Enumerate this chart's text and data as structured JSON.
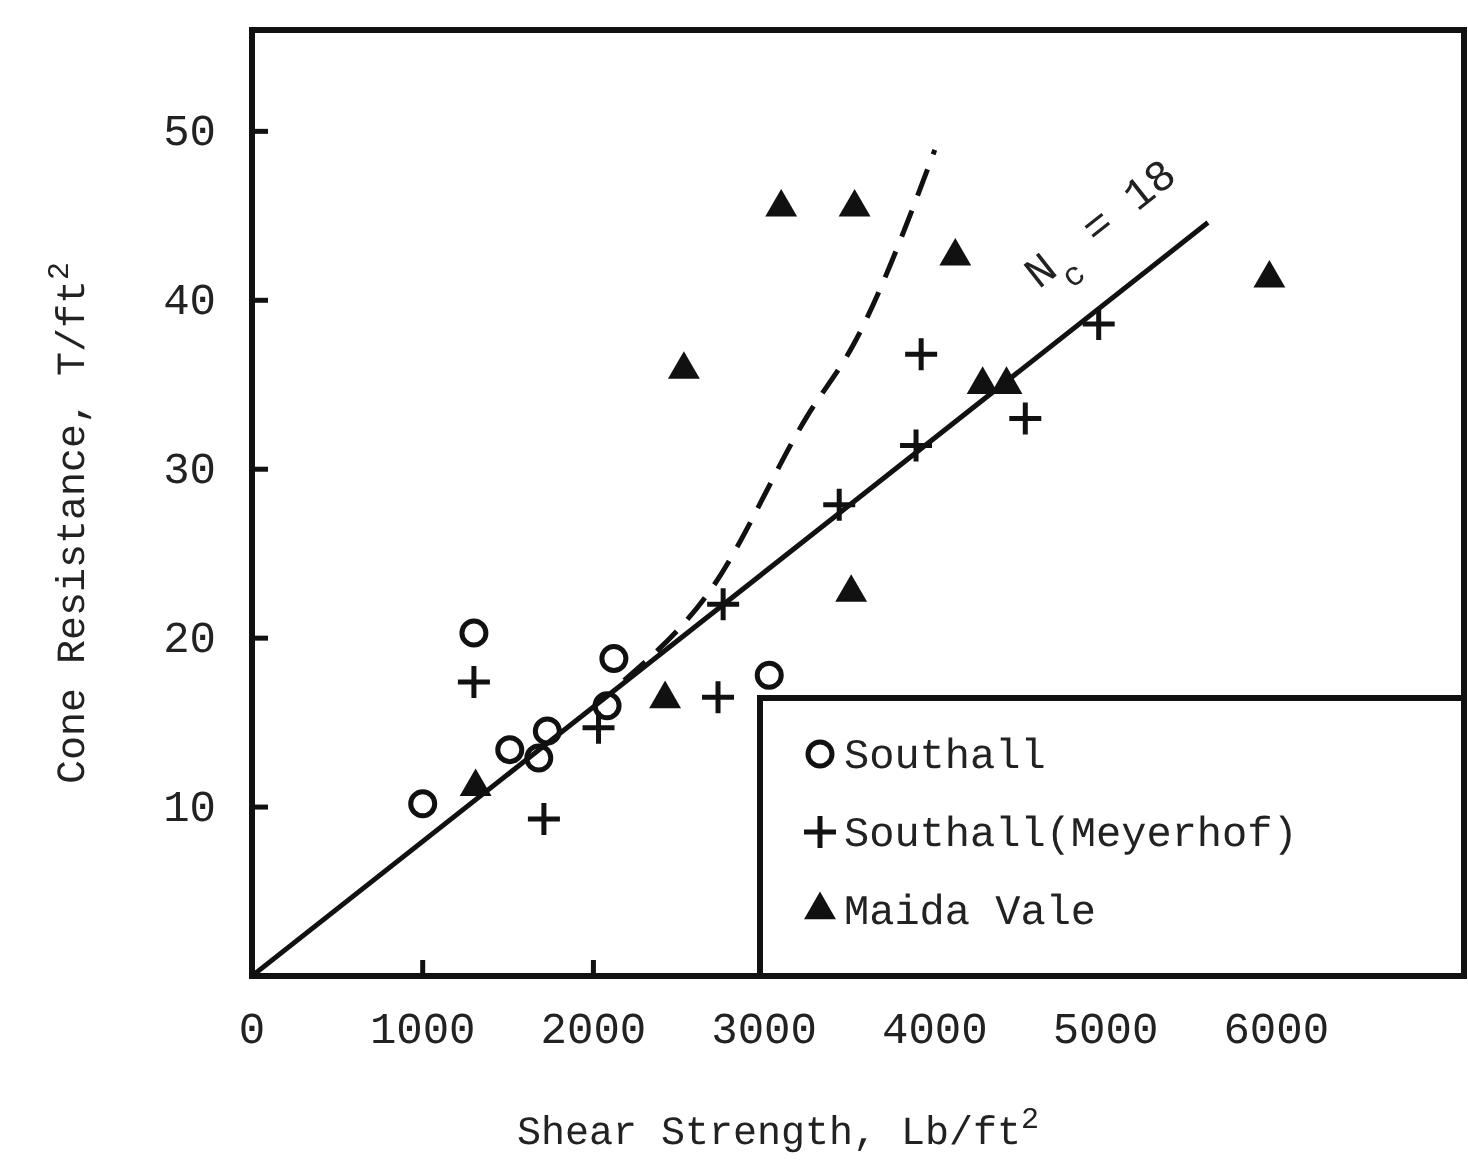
{
  "chart_data": {
    "type": "scatter",
    "xlabel": "Shear Strength, Lb/ft$^{2}$",
    "ylabel": "Cone Resistance, T/ft$^{2}$",
    "xlim": [
      0,
      7100
    ],
    "ylim": [
      0,
      56
    ],
    "xticks": [
      0,
      1000,
      2000,
      3000,
      4000,
      5000,
      6000
    ],
    "yticks": [
      10,
      20,
      30,
      40,
      50
    ],
    "grid": false,
    "legend": "bottom right",
    "series": [
      {
        "name": "Southall",
        "marker": "circle",
        "color": "#111111",
        "x": [
          1000,
          1300,
          1510,
          1680,
          1730,
          2080,
          2120,
          3030
        ],
        "values": [
          10.2,
          20.3,
          13.4,
          12.9,
          14.5,
          16.0,
          18.8,
          17.8
        ]
      },
      {
        "name": "Southall(Meyerhof)",
        "marker": "cross",
        "color": "#111111",
        "x": [
          1300,
          1710,
          2030,
          2730,
          2760,
          3440,
          3890,
          3920,
          4530,
          4960
        ],
        "values": [
          17.4,
          9.3,
          14.7,
          16.5,
          22.0,
          27.9,
          31.4,
          36.8,
          33.0,
          38.6
        ]
      },
      {
        "name": "Maida Vale",
        "marker": "triangle",
        "color": "#111111",
        "x": [
          1310,
          2420,
          3510,
          2530,
          3100,
          3530,
          4120,
          4280,
          4420,
          5960
        ],
        "values": [
          11.2,
          16.4,
          22.7,
          35.9,
          45.5,
          45.5,
          42.6,
          35.0,
          35.0,
          41.3
        ]
      },
      {
        "type": "line",
        "line_style": "solid",
        "color": "#111111",
        "x": [
          0,
          5600
        ],
        "values": [
          0,
          44.6
        ]
      },
      {
        "type": "line",
        "line_style": "dashed",
        "color": "#111111",
        "x": [
          2180,
          2690,
          3250,
          3530,
          4000
        ],
        "values": [
          17.5,
          22.9,
          33.1,
          37.5,
          48.9
        ]
      }
    ],
    "annotations": [
      "N$_{c}$ = 18"
    ]
  }
}
